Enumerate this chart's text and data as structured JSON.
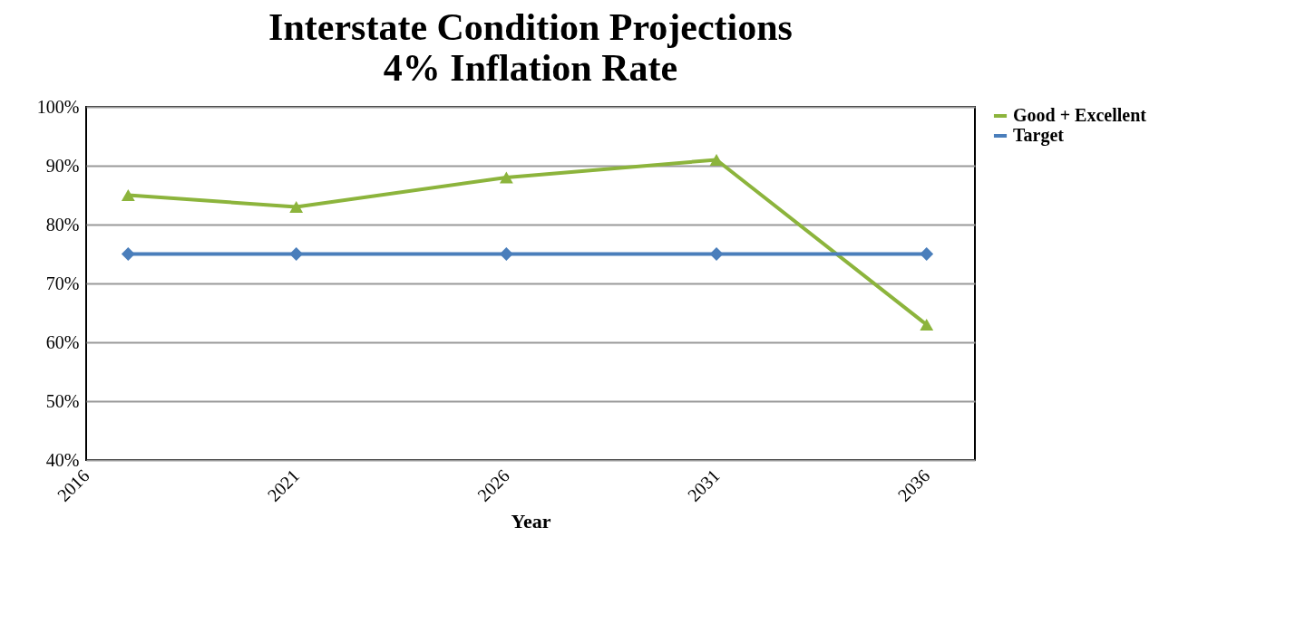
{
  "chart_data": {
    "type": "line",
    "title": "Interstate Condition Projections",
    "subtitle": "4% Inflation Rate",
    "xlabel": "Year",
    "xlim": [
      2016,
      2037.15
    ],
    "xticks": [
      2016,
      2021,
      2026,
      2031,
      2036
    ],
    "ylim": [
      40,
      100
    ],
    "yticks": [
      {
        "value": 40,
        "label": "40%"
      },
      {
        "value": 50,
        "label": "50%"
      },
      {
        "value": 60,
        "label": "60%"
      },
      {
        "value": 70,
        "label": "70%"
      },
      {
        "value": 80,
        "label": "80%"
      },
      {
        "value": 90,
        "label": "90%"
      },
      {
        "value": 100,
        "label": "100%"
      }
    ],
    "x": [
      2017,
      2021,
      2026,
      2031,
      2036
    ],
    "series": [
      {
        "name": "Good + Excellent",
        "color": "#8cb43c",
        "marker": "triangle",
        "values": [
          85,
          83,
          88,
          91,
          63
        ]
      },
      {
        "name": "Target",
        "color": "#4a7ebb",
        "marker": "diamond",
        "values": [
          75,
          75,
          75,
          75,
          75
        ]
      }
    ],
    "grid": "y",
    "legend": "right",
    "line_style": "solid"
  }
}
